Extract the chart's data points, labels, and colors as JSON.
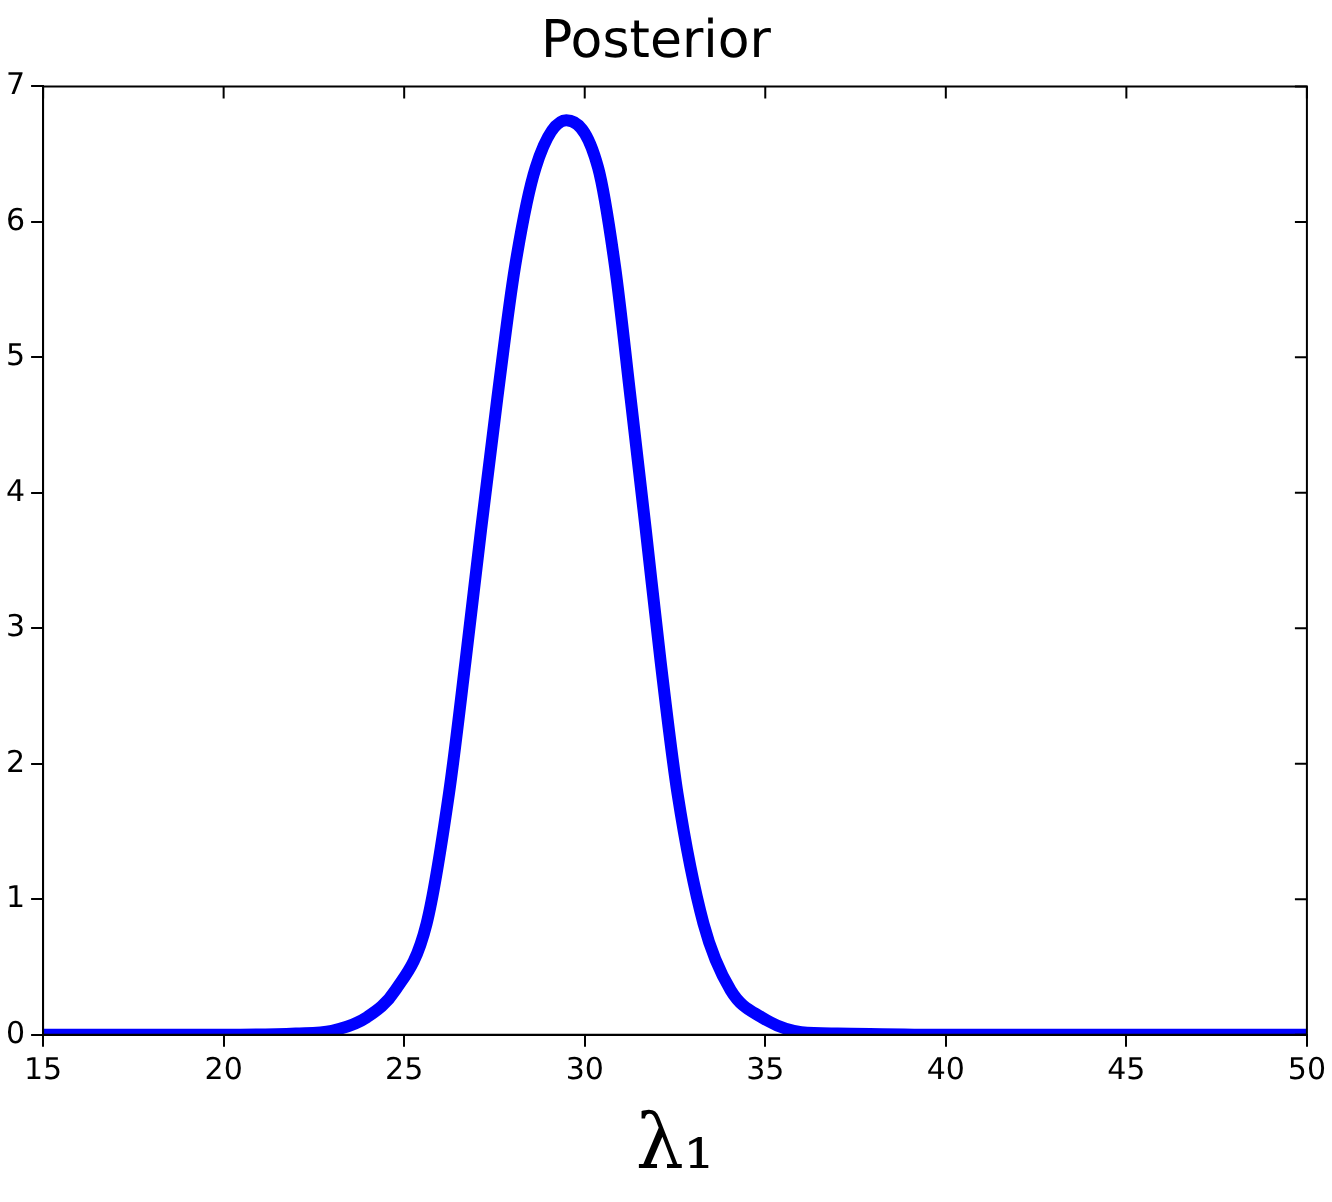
{
  "chart_data": {
    "type": "line",
    "title": "Posterior",
    "xlabel": "λ₁",
    "x": [
      15,
      20,
      22,
      23,
      23.97,
      24.76,
      25.62,
      26.24,
      26.7,
      27.13,
      27.58,
      28.07,
      28.64,
      29.49,
      30.37,
      30.84,
      31.27,
      31.69,
      32.1,
      32.57,
      33.29,
      34.04,
      34.89,
      36,
      37,
      40,
      45,
      50
    ],
    "series": [
      {
        "color": "#0000ff",
        "values": [
          0,
          0,
          0.01,
          0.03,
          0.13,
          0.33,
          0.82,
          1.78,
          2.76,
          3.73,
          4.7,
          5.67,
          6.4,
          6.75,
          6.4,
          5.67,
          4.7,
          3.73,
          2.76,
          1.78,
          0.82,
          0.33,
          0.13,
          0.02,
          0.01,
          0,
          0,
          0
        ]
      }
    ],
    "xlim": [
      15,
      50
    ],
    "xticks": [
      15,
      20,
      25,
      30,
      35,
      40,
      45,
      50
    ],
    "ylim": [
      0,
      7
    ],
    "yticks": [
      0,
      1,
      2,
      3,
      4,
      5,
      6,
      7
    ],
    "grid": false,
    "legend": false,
    "marker": "none",
    "line_style": "solid"
  }
}
